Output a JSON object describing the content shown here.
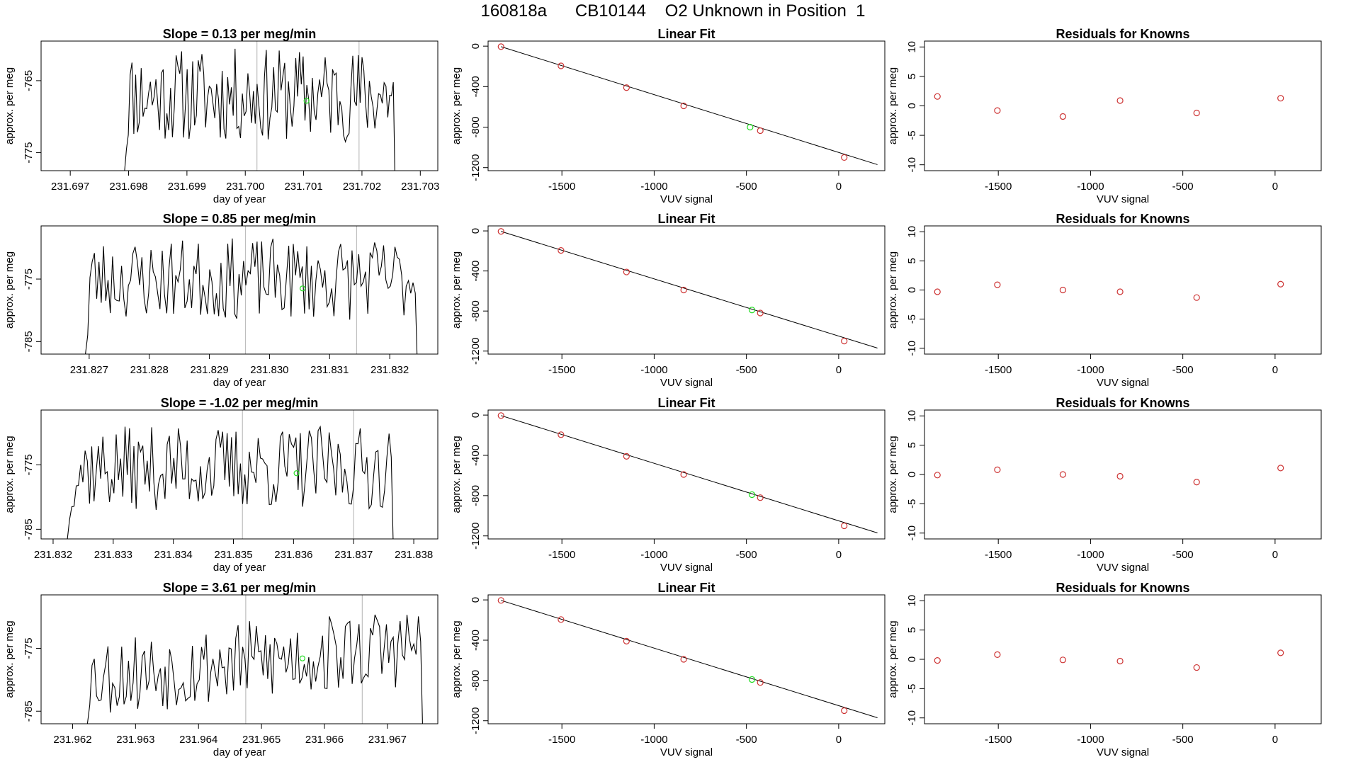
{
  "page": {
    "title": "160818a      CB10144    O2 Unknown in Position  1"
  },
  "colors": {
    "line": "#000000",
    "known_point": "#cd3333",
    "unknown_point": "#22dd22",
    "vline": "#bebebe",
    "frame": "#000000"
  },
  "chart_data": [
    {
      "panel": "timeseries",
      "type": "line",
      "title": "Slope =  0.13  per meg/min",
      "xlabel": "day of year",
      "ylabel": "approx. per meg",
      "xlim": [
        231.6965,
        231.7033
      ],
      "ylim": [
        -777.5,
        -759.5
      ],
      "xticks": [
        231.697,
        231.698,
        231.699,
        231.7,
        231.701,
        231.702,
        231.703
      ],
      "xtick_labels": [
        "231.697",
        "231.698",
        "231.699",
        "231.700",
        "231.701",
        "231.702",
        "231.703"
      ],
      "yticks": [
        -765,
        -775
      ],
      "ytick_labels": [
        "-765",
        "-775"
      ],
      "data_start": 231.6979,
      "data_end": 231.7026,
      "baseline": -767,
      "noise_seed": 11,
      "vlines": [
        231.7002,
        231.70195
      ],
      "marker": {
        "x": 231.70105,
        "y": -767.8
      }
    },
    {
      "panel": "linearfit",
      "type": "scatter",
      "title": "Linear Fit",
      "xlabel": "VUV signal",
      "ylabel": "approx. per meg",
      "xlim": [
        -1900,
        250
      ],
      "ylim": [
        -1230,
        50
      ],
      "xticks": [
        -1500,
        -1000,
        -500,
        0
      ],
      "xtick_labels": [
        "-1500",
        "-1000",
        "-500",
        "0"
      ],
      "yticks": [
        0,
        -400,
        -800,
        -1200
      ],
      "ytick_labels": [
        "0",
        "-400",
        "-800",
        "-1200"
      ],
      "fit_line": {
        "x0": -1830,
        "y0": -5,
        "x1": 210,
        "y1": -1170
      },
      "knowns": [
        [
          -1830,
          -5
        ],
        [
          -1505,
          -195
        ],
        [
          -1150,
          -410
        ],
        [
          -840,
          -590
        ],
        [
          -425,
          -835
        ],
        [
          30,
          -1100
        ]
      ],
      "unknown": [
        -480,
        -800
      ]
    },
    {
      "panel": "residuals",
      "type": "scatter",
      "title": "Residuals for Knowns",
      "xlabel": "VUV signal",
      "ylabel": "approx. per meg",
      "xlim": [
        -1900,
        250
      ],
      "ylim": [
        -11,
        11
      ],
      "xticks": [
        -1500,
        -1000,
        -500,
        0
      ],
      "xtick_labels": [
        "-1500",
        "-1000",
        "-500",
        "0"
      ],
      "yticks": [
        10,
        5,
        0,
        -5,
        -10
      ],
      "ytick_labels": [
        "10",
        "5",
        "0",
        "-5",
        "-10"
      ],
      "points": [
        [
          -1830,
          1.6
        ],
        [
          -1505,
          -0.8
        ],
        [
          -1150,
          -1.8
        ],
        [
          -840,
          0.9
        ],
        [
          -425,
          -1.2
        ],
        [
          30,
          1.3
        ]
      ]
    },
    {
      "panel": "timeseries",
      "type": "line",
      "title": "Slope =  0.85  per meg/min",
      "xlabel": "day of year",
      "ylabel": "approx. per meg",
      "xlim": [
        231.8262,
        231.8328
      ],
      "ylim": [
        -787,
        -766.5
      ],
      "xticks": [
        231.827,
        231.828,
        231.829,
        231.83,
        231.831,
        231.832
      ],
      "xtick_labels": [
        "231.827",
        "231.828",
        "231.829",
        "231.830",
        "231.831",
        "231.832"
      ],
      "yticks": [
        -775,
        -785
      ],
      "ytick_labels": [
        "-775",
        "-785"
      ],
      "data_start": 231.8269,
      "data_end": 231.8325,
      "baseline": -775,
      "noise_seed": 23,
      "vlines": [
        231.8296,
        231.83145
      ],
      "marker": {
        "x": 231.83055,
        "y": -776.5
      }
    },
    {
      "panel": "linearfit",
      "type": "scatter",
      "title": "Linear Fit",
      "xlabel": "VUV signal",
      "ylabel": "approx. per meg",
      "xlim": [
        -1900,
        250
      ],
      "ylim": [
        -1230,
        50
      ],
      "xticks": [
        -1500,
        -1000,
        -500,
        0
      ],
      "xtick_labels": [
        "-1500",
        "-1000",
        "-500",
        "0"
      ],
      "yticks": [
        0,
        -400,
        -800,
        -1200
      ],
      "ytick_labels": [
        "0",
        "-400",
        "-800",
        "-1200"
      ],
      "fit_line": {
        "x0": -1830,
        "y0": -5,
        "x1": 210,
        "y1": -1170
      },
      "knowns": [
        [
          -1830,
          -5
        ],
        [
          -1505,
          -195
        ],
        [
          -1150,
          -410
        ],
        [
          -840,
          -590
        ],
        [
          -425,
          -820
        ],
        [
          30,
          -1100
        ]
      ],
      "unknown": [
        -470,
        -790
      ]
    },
    {
      "panel": "residuals",
      "type": "scatter",
      "title": "Residuals for Knowns",
      "xlabel": "VUV signal",
      "ylabel": "approx. per meg",
      "xlim": [
        -1900,
        250
      ],
      "ylim": [
        -11,
        11
      ],
      "xticks": [
        -1500,
        -1000,
        -500,
        0
      ],
      "xtick_labels": [
        "-1500",
        "-1000",
        "-500",
        "0"
      ],
      "yticks": [
        10,
        5,
        0,
        -5,
        -10
      ],
      "ytick_labels": [
        "10",
        "5",
        "0",
        "-5",
        "-10"
      ],
      "points": [
        [
          -1830,
          -0.3
        ],
        [
          -1505,
          0.9
        ],
        [
          -1150,
          0.0
        ],
        [
          -840,
          -0.3
        ],
        [
          -425,
          -1.3
        ],
        [
          30,
          1.0
        ]
      ]
    },
    {
      "panel": "timeseries",
      "type": "line",
      "title": "Slope =  -1.02  per meg/min",
      "xlabel": "day of year",
      "ylabel": "approx. per meg",
      "xlim": [
        231.8318,
        231.8384
      ],
      "ylim": [
        -786.5,
        -766.5
      ],
      "xticks": [
        231.832,
        231.833,
        231.834,
        231.835,
        231.836,
        231.837,
        231.838
      ],
      "xtick_labels": [
        "231.832",
        "231.833",
        "231.834",
        "231.835",
        "231.836",
        "231.837",
        "231.838"
      ],
      "yticks": [
        -775,
        -785
      ],
      "ytick_labels": [
        "-775",
        "-785"
      ],
      "data_start": 231.8322,
      "data_end": 231.8377,
      "baseline": -775.5,
      "noise_seed": 37,
      "vlines": [
        231.83515,
        231.837
      ],
      "marker": {
        "x": 231.83605,
        "y": -776.3
      }
    },
    {
      "panel": "linearfit",
      "type": "scatter",
      "title": "Linear Fit",
      "xlabel": "VUV signal",
      "ylabel": "approx. per meg",
      "xlim": [
        -1900,
        250
      ],
      "ylim": [
        -1230,
        50
      ],
      "xticks": [
        -1500,
        -1000,
        -500,
        0
      ],
      "xtick_labels": [
        "-1500",
        "-1000",
        "-500",
        "0"
      ],
      "yticks": [
        0,
        -400,
        -800,
        -1200
      ],
      "ytick_labels": [
        "0",
        "-400",
        "-800",
        "-1200"
      ],
      "fit_line": {
        "x0": -1830,
        "y0": -5,
        "x1": 210,
        "y1": -1170
      },
      "knowns": [
        [
          -1830,
          -5
        ],
        [
          -1505,
          -195
        ],
        [
          -1150,
          -410
        ],
        [
          -840,
          -590
        ],
        [
          -425,
          -820
        ],
        [
          30,
          -1100
        ]
      ],
      "unknown": [
        -470,
        -790
      ]
    },
    {
      "panel": "residuals",
      "type": "scatter",
      "title": "Residuals for Knowns",
      "xlabel": "VUV signal",
      "ylabel": "approx. per meg",
      "xlim": [
        -1900,
        250
      ],
      "ylim": [
        -11,
        11
      ],
      "xticks": [
        -1500,
        -1000,
        -500,
        0
      ],
      "xtick_labels": [
        "-1500",
        "-1000",
        "-500",
        "0"
      ],
      "yticks": [
        10,
        5,
        0,
        -5,
        -10
      ],
      "ytick_labels": [
        "10",
        "5",
        "0",
        "-5",
        "-10"
      ],
      "points": [
        [
          -1830,
          -0.1
        ],
        [
          -1505,
          0.8
        ],
        [
          -1150,
          0.0
        ],
        [
          -840,
          -0.3
        ],
        [
          -425,
          -1.3
        ],
        [
          30,
          1.1
        ]
      ]
    },
    {
      "panel": "timeseries",
      "type": "line",
      "title": "Slope =  3.61  per meg/min",
      "xlabel": "day of year",
      "ylabel": "approx. per meg",
      "xlim": [
        231.9615,
        231.9678
      ],
      "ylim": [
        -787,
        -766.5
      ],
      "xticks": [
        231.962,
        231.963,
        231.964,
        231.965,
        231.966,
        231.967
      ],
      "xtick_labels": [
        "231.962",
        "231.963",
        "231.964",
        "231.965",
        "231.966",
        "231.967"
      ],
      "yticks": [
        -775,
        -785
      ],
      "ytick_labels": [
        "-775",
        "-785"
      ],
      "data_start": 231.9622,
      "data_end": 231.9676,
      "baseline": -777,
      "trend": 5,
      "noise_seed": 53,
      "vlines": [
        231.96475,
        231.9666
      ],
      "marker": {
        "x": 231.96565,
        "y": -776.6
      }
    },
    {
      "panel": "linearfit",
      "type": "scatter",
      "title": "Linear Fit",
      "xlabel": "VUV signal",
      "ylabel": "approx. per meg",
      "xlim": [
        -1900,
        250
      ],
      "ylim": [
        -1230,
        50
      ],
      "xticks": [
        -1500,
        -1000,
        -500,
        0
      ],
      "xtick_labels": [
        "-1500",
        "-1000",
        "-500",
        "0"
      ],
      "yticks": [
        0,
        -400,
        -800,
        -1200
      ],
      "ytick_labels": [
        "0",
        "-400",
        "-800",
        "-1200"
      ],
      "fit_line": {
        "x0": -1830,
        "y0": -5,
        "x1": 210,
        "y1": -1170
      },
      "knowns": [
        [
          -1830,
          -5
        ],
        [
          -1505,
          -195
        ],
        [
          -1150,
          -410
        ],
        [
          -840,
          -590
        ],
        [
          -425,
          -820
        ],
        [
          30,
          -1100
        ]
      ],
      "unknown": [
        -470,
        -790
      ]
    },
    {
      "panel": "residuals",
      "type": "scatter",
      "title": "Residuals for Knowns",
      "xlabel": "VUV signal",
      "ylabel": "approx. per meg",
      "xlim": [
        -1900,
        250
      ],
      "ylim": [
        -11,
        11
      ],
      "xticks": [
        -1500,
        -1000,
        -500,
        0
      ],
      "xtick_labels": [
        "-1500",
        "-1000",
        "-500",
        "0"
      ],
      "yticks": [
        10,
        5,
        0,
        -5,
        -10
      ],
      "ytick_labels": [
        "10",
        "5",
        "0",
        "-5",
        "-10"
      ],
      "points": [
        [
          -1830,
          -0.2
        ],
        [
          -1505,
          0.8
        ],
        [
          -1150,
          -0.1
        ],
        [
          -840,
          -0.3
        ],
        [
          -425,
          -1.4
        ],
        [
          30,
          1.1
        ]
      ]
    }
  ]
}
